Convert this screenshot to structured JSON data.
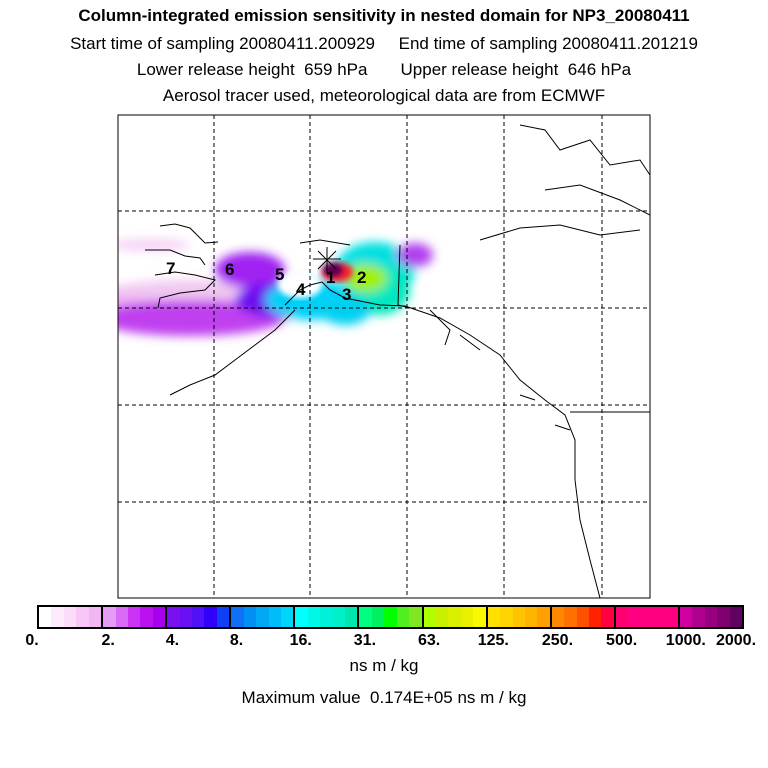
{
  "header": {
    "title": "Column-integrated emission sensitivity in nested domain for NP3_20080411",
    "line2": "Start time of sampling 20080411.200929     End time of sampling 20080411.201219",
    "line3": "Lower release height  659 hPa       Upper release height  646 hPa",
    "line4": "Aerosol tracer used, meteorological data are from ECMWF"
  },
  "map": {
    "markers": [
      "1",
      "2",
      "3",
      "4",
      "5",
      "6",
      "7"
    ],
    "release_marker": "asterisk-icon"
  },
  "colorbar": {
    "labels": [
      "0.",
      "2.",
      "4.",
      "8.",
      "16.",
      "31.",
      "63.",
      "125.",
      "250.",
      "500.",
      "1000.",
      "2000."
    ],
    "colors": [
      [
        "#ffffff",
        "#fdeafd",
        "#fbdcfb",
        "#f7c8f7",
        "#f2b6f2"
      ],
      [
        "#e49cf5",
        "#d96af5",
        "#cc33f5",
        "#bb10f0",
        "#a800ee"
      ],
      [
        "#7a10f0",
        "#6a10f5",
        "#5010f8",
        "#3000fa",
        "#1040f5"
      ],
      [
        "#1070f5",
        "#0090f5",
        "#00a8f5",
        "#00bcf8",
        "#00d4f8"
      ],
      [
        "#00ffff",
        "#00f8e8",
        "#00f0d8",
        "#00f0c8",
        "#00e8b0"
      ],
      [
        "#00ff80",
        "#00f060",
        "#00ff00",
        "#50f020",
        "#80e820"
      ],
      [
        "#b0ff00",
        "#c8f000",
        "#d8f000",
        "#e8f000",
        "#f8f800"
      ],
      [
        "#ffe000",
        "#ffd400",
        "#ffc400",
        "#ffb400",
        "#ffa000"
      ],
      [
        "#ff8800",
        "#ff7000",
        "#ff5000",
        "#ff2000",
        "#ff0040"
      ],
      [
        "#ff0070",
        "#ff0080",
        "#ff0080",
        "#ff0080",
        "#ff0080"
      ],
      [
        "#d000a0",
        "#b00090",
        "#980080",
        "#800070",
        "#600060"
      ]
    ],
    "units": "ns m / kg",
    "max_value_text": "Maximum value  0.174E+05 ns m / kg"
  }
}
